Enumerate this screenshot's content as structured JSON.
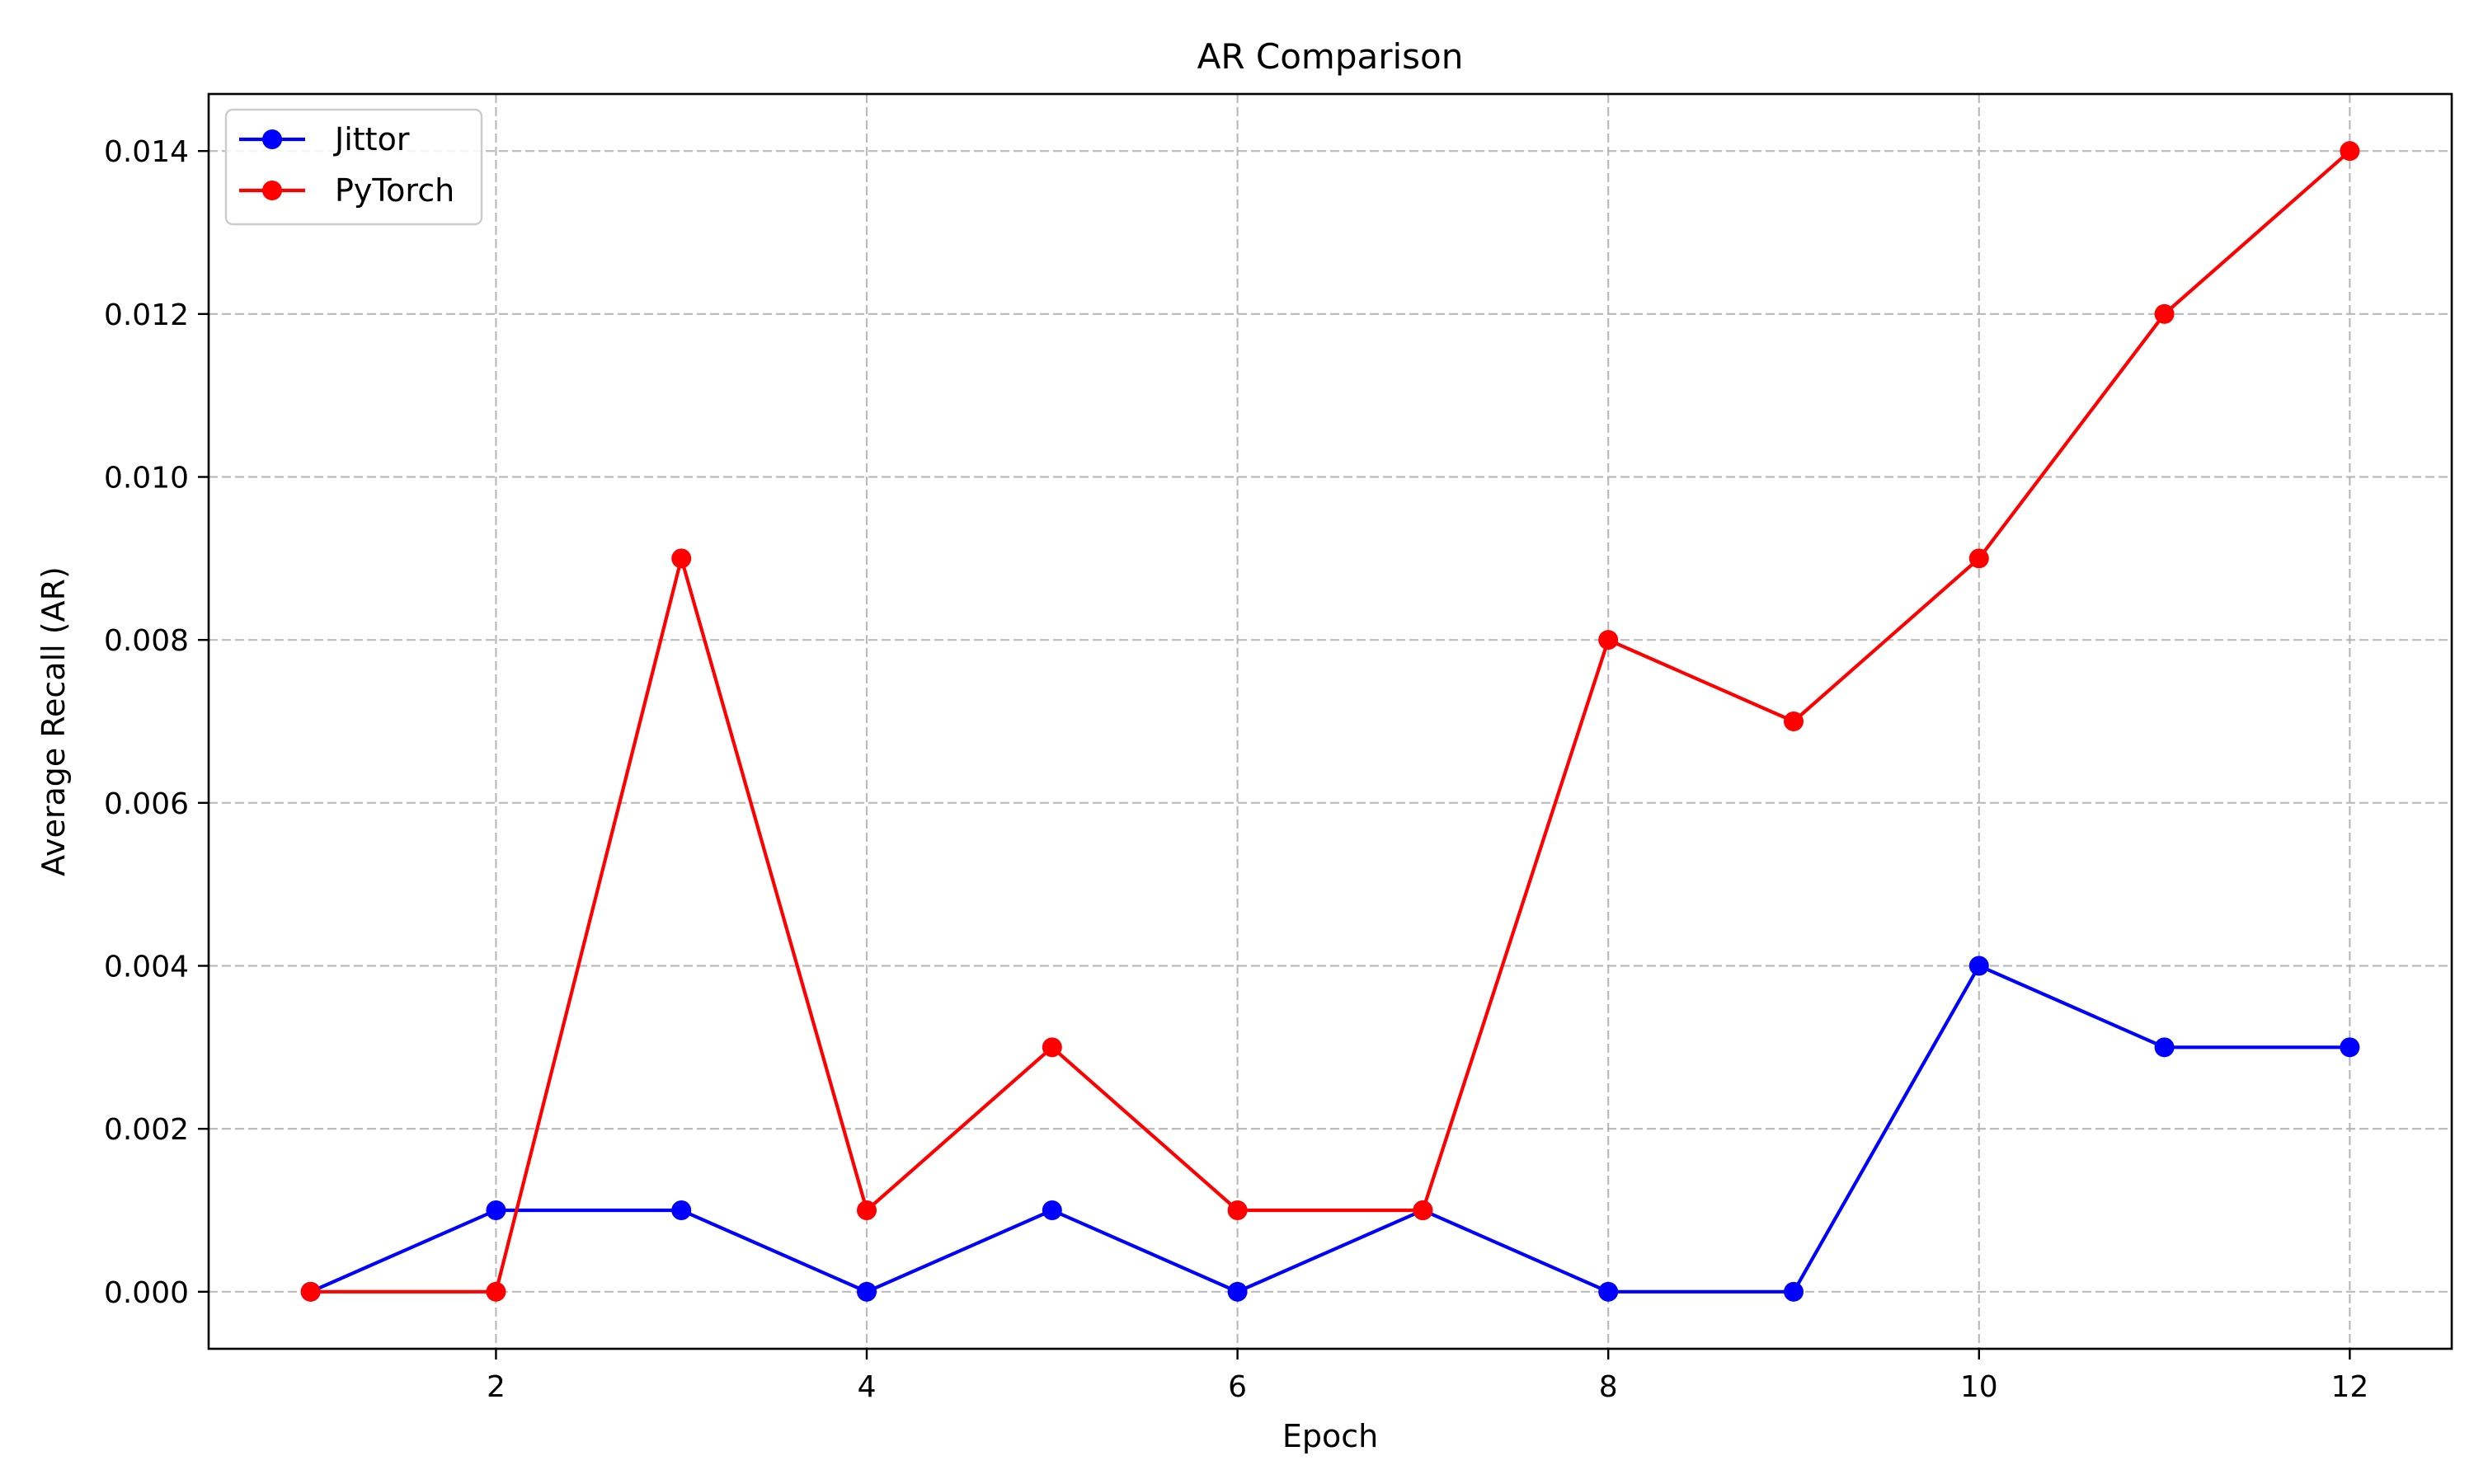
{
  "chart_data": {
    "type": "line",
    "title": "AR Comparison",
    "xlabel": "Epoch",
    "ylabel": "Average Recall (AR)",
    "x": [
      1,
      2,
      3,
      4,
      5,
      6,
      7,
      8,
      9,
      10,
      11,
      12
    ],
    "xlim": [
      0.45,
      12.55
    ],
    "ylim": [
      -0.0007,
      0.0147
    ],
    "xticks": [
      2,
      4,
      6,
      8,
      10,
      12
    ],
    "xtick_labels": [
      "2",
      "4",
      "6",
      "8",
      "10",
      "12"
    ],
    "yticks": [
      0,
      0.002,
      0.004,
      0.006,
      0.008,
      0.01,
      0.012,
      0.014
    ],
    "ytick_labels": [
      "0.000",
      "0.002",
      "0.004",
      "0.006",
      "0.008",
      "0.010",
      "0.012",
      "0.014"
    ],
    "grid": true,
    "legend_position": "top-left",
    "series": [
      {
        "name": "Jittor",
        "color": "#0000ff",
        "marker": "circle",
        "values": [
          0.0,
          0.001,
          0.001,
          0.0,
          0.001,
          0.0,
          0.001,
          0.0,
          0.0,
          0.004,
          0.003,
          0.003
        ]
      },
      {
        "name": "PyTorch",
        "color": "#ff0000",
        "marker": "circle",
        "values": [
          0.0,
          0.0,
          0.009,
          0.001,
          0.003,
          0.001,
          0.001,
          0.008,
          0.007,
          0.009,
          0.012,
          0.014
        ]
      }
    ]
  }
}
